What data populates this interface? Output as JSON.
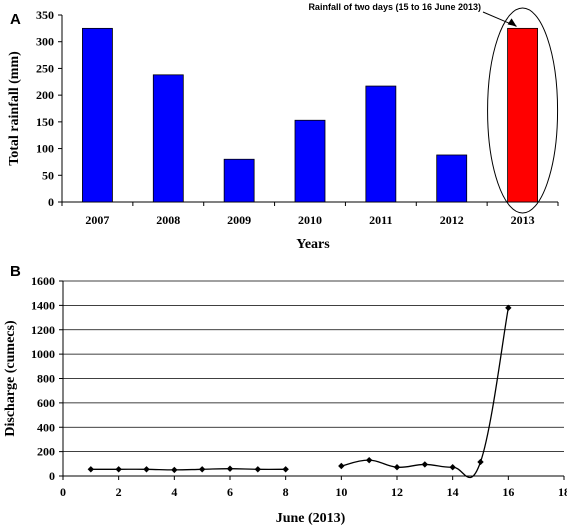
{
  "chart_data": [
    {
      "panel": "A",
      "type": "bar",
      "categories": [
        "2007",
        "2008",
        "2009",
        "2010",
        "2011",
        "2012",
        "2013"
      ],
      "values": [
        325,
        238,
        80,
        153,
        217,
        88,
        325
      ],
      "colors": [
        "#0000ff",
        "#0000ff",
        "#0000ff",
        "#0000ff",
        "#0000ff",
        "#0000ff",
        "#ff0000"
      ],
      "xlabel": "Years",
      "ylabel": "Total rainfall (mm)",
      "ylim": [
        0,
        350
      ],
      "yticks": [
        "0",
        "50",
        "100",
        "150",
        "200",
        "250",
        "300",
        "350"
      ],
      "grid": false,
      "annotation": {
        "text": "Rainfall of  two days (15 to 16 June 2013)",
        "target_category": "2013",
        "highlight": "ellipse"
      }
    },
    {
      "panel": "B",
      "type": "line",
      "series": [
        {
          "segments": [
            [
              [
                1,
                55
              ],
              [
                2,
                55
              ],
              [
                3,
                55
              ],
              [
                4,
                50
              ],
              [
                5,
                55
              ],
              [
                6,
                60
              ],
              [
                7,
                55
              ],
              [
                8,
                55
              ]
            ],
            [
              [
                10,
                82
              ],
              [
                11,
                130
              ],
              [
                12,
                72
              ],
              [
                13,
                95
              ],
              [
                14,
                72
              ],
              [
                15,
                115
              ],
              [
                16,
                1380
              ]
            ]
          ],
          "color": "#000000",
          "marker": "diamond"
        }
      ],
      "xlabel": "June (2013)",
      "ylabel": "Discharge (cumecs)",
      "xlim": [
        0,
        18
      ],
      "ylim": [
        0,
        1600
      ],
      "xticks": [
        "0",
        "2",
        "4",
        "6",
        "8",
        "10",
        "12",
        "14",
        "16",
        "18"
      ],
      "yticks": [
        "0",
        "200",
        "400",
        "600",
        "800",
        "1000",
        "1200",
        "1400",
        "1600"
      ],
      "grid": "horizontal"
    }
  ],
  "labels": {
    "panel_a": "A",
    "panel_b": "B"
  }
}
